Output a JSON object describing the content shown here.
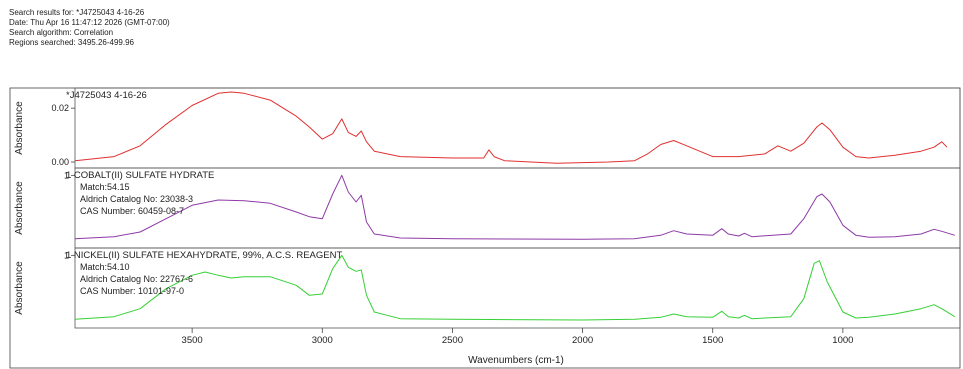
{
  "header": {
    "line1": "Search results for:  *J4725043 4-16-26",
    "line2": "Date:  Thu Apr 16 11:47:12 2026 (GMT-07:00)",
    "line3": "Search algorithm:  Correlation",
    "line4": "Regions searched:  3495.26-499.96"
  },
  "chart_data": {
    "type": "line",
    "xlabel": "Wavenumbers (cm-1)",
    "ylabel": "Absorbance",
    "xlim": [
      3950,
      550
    ],
    "x_reversed": true,
    "x_ticks": [
      "3500",
      "3000",
      "2500",
      "2000",
      "1500",
      "1000"
    ],
    "x_tick_values": [
      3500,
      3000,
      2500,
      2000,
      1500,
      1000
    ],
    "panels": [
      {
        "name": "*J4725043 4-16-26",
        "color": "#e03030",
        "ylim": [
          0,
          0.026
        ],
        "y_ticks": [
          "0.02",
          "0.00"
        ],
        "y_tick_values": [
          0.02,
          0.0
        ],
        "info": [],
        "points": [
          [
            3950,
            0.0005
          ],
          [
            3800,
            0.002
          ],
          [
            3700,
            0.006
          ],
          [
            3600,
            0.014
          ],
          [
            3500,
            0.021
          ],
          [
            3400,
            0.0255
          ],
          [
            3350,
            0.026
          ],
          [
            3300,
            0.0255
          ],
          [
            3200,
            0.023
          ],
          [
            3100,
            0.017
          ],
          [
            3050,
            0.013
          ],
          [
            3000,
            0.0085
          ],
          [
            2960,
            0.0105
          ],
          [
            2925,
            0.016
          ],
          [
            2900,
            0.011
          ],
          [
            2870,
            0.0095
          ],
          [
            2850,
            0.0115
          ],
          [
            2830,
            0.0075
          ],
          [
            2800,
            0.004
          ],
          [
            2700,
            0.002
          ],
          [
            2500,
            0.0015
          ],
          [
            2380,
            0.0015
          ],
          [
            2360,
            0.0045
          ],
          [
            2340,
            0.002
          ],
          [
            2300,
            0.0005
          ],
          [
            2100,
            -0.0005
          ],
          [
            1900,
            0.0
          ],
          [
            1800,
            0.0005
          ],
          [
            1750,
            0.003
          ],
          [
            1700,
            0.0065
          ],
          [
            1650,
            0.008
          ],
          [
            1600,
            0.006
          ],
          [
            1500,
            0.002
          ],
          [
            1400,
            0.002
          ],
          [
            1300,
            0.003
          ],
          [
            1250,
            0.006
          ],
          [
            1200,
            0.004
          ],
          [
            1150,
            0.007
          ],
          [
            1100,
            0.013
          ],
          [
            1080,
            0.0145
          ],
          [
            1050,
            0.012
          ],
          [
            1000,
            0.0055
          ],
          [
            950,
            0.002
          ],
          [
            900,
            0.0015
          ],
          [
            800,
            0.0025
          ],
          [
            700,
            0.004
          ],
          [
            650,
            0.0055
          ],
          [
            620,
            0.0075
          ],
          [
            600,
            0.0055
          ]
        ]
      },
      {
        "name": "1  COBALT(II) SULFATE HYDRATE",
        "color": "#8e3aa6",
        "ylim": [
          0,
          1.05
        ],
        "y_ticks": [
          "1"
        ],
        "y_tick_values": [
          1.0
        ],
        "info": [
          "Match:54.15",
          "Aldrich Catalog No:  23038-3",
          "CAS Number:  60459-08-7"
        ],
        "points": [
          [
            3950,
            0.05
          ],
          [
            3800,
            0.08
          ],
          [
            3700,
            0.15
          ],
          [
            3600,
            0.35
          ],
          [
            3500,
            0.55
          ],
          [
            3400,
            0.63
          ],
          [
            3300,
            0.62
          ],
          [
            3200,
            0.58
          ],
          [
            3100,
            0.45
          ],
          [
            3050,
            0.38
          ],
          [
            3000,
            0.35
          ],
          [
            2960,
            0.72
          ],
          [
            2925,
            1.0
          ],
          [
            2900,
            0.75
          ],
          [
            2870,
            0.6
          ],
          [
            2850,
            0.7
          ],
          [
            2830,
            0.3
          ],
          [
            2800,
            0.12
          ],
          [
            2700,
            0.06
          ],
          [
            2500,
            0.05
          ],
          [
            2000,
            0.04
          ],
          [
            1800,
            0.05
          ],
          [
            1700,
            0.1
          ],
          [
            1650,
            0.17
          ],
          [
            1600,
            0.12
          ],
          [
            1500,
            0.1
          ],
          [
            1465,
            0.2
          ],
          [
            1440,
            0.12
          ],
          [
            1400,
            0.09
          ],
          [
            1378,
            0.13
          ],
          [
            1350,
            0.08
          ],
          [
            1200,
            0.12
          ],
          [
            1150,
            0.35
          ],
          [
            1100,
            0.68
          ],
          [
            1080,
            0.72
          ],
          [
            1050,
            0.6
          ],
          [
            1000,
            0.25
          ],
          [
            950,
            0.1
          ],
          [
            900,
            0.07
          ],
          [
            800,
            0.08
          ],
          [
            700,
            0.12
          ],
          [
            650,
            0.19
          ],
          [
            620,
            0.16
          ],
          [
            570,
            0.1
          ]
        ]
      },
      {
        "name": "1  NICKEL(II) SULFATE HEXAHYDRATE, 99%, A.C.S. REAGENT",
        "color": "#36d036",
        "ylim": [
          0,
          1.05
        ],
        "y_ticks": [
          "1"
        ],
        "y_tick_values": [
          1.0
        ],
        "info": [
          "Match:54.10",
          "Aldrich Catalog No:  22767-6",
          "CAS Number:  10101-97-0"
        ],
        "points": [
          [
            3950,
            0.04
          ],
          [
            3800,
            0.08
          ],
          [
            3700,
            0.2
          ],
          [
            3600,
            0.5
          ],
          [
            3500,
            0.7
          ],
          [
            3450,
            0.75
          ],
          [
            3400,
            0.7
          ],
          [
            3350,
            0.66
          ],
          [
            3300,
            0.68
          ],
          [
            3200,
            0.68
          ],
          [
            3100,
            0.55
          ],
          [
            3050,
            0.4
          ],
          [
            3000,
            0.42
          ],
          [
            2960,
            0.8
          ],
          [
            2925,
            1.0
          ],
          [
            2900,
            0.82
          ],
          [
            2870,
            0.76
          ],
          [
            2850,
            0.78
          ],
          [
            2830,
            0.4
          ],
          [
            2800,
            0.15
          ],
          [
            2700,
            0.05
          ],
          [
            2500,
            0.04
          ],
          [
            2000,
            0.03
          ],
          [
            1800,
            0.04
          ],
          [
            1700,
            0.07
          ],
          [
            1650,
            0.12
          ],
          [
            1600,
            0.08
          ],
          [
            1500,
            0.07
          ],
          [
            1465,
            0.16
          ],
          [
            1440,
            0.08
          ],
          [
            1400,
            0.06
          ],
          [
            1378,
            0.1
          ],
          [
            1350,
            0.05
          ],
          [
            1200,
            0.08
          ],
          [
            1150,
            0.35
          ],
          [
            1110,
            0.88
          ],
          [
            1090,
            0.92
          ],
          [
            1060,
            0.6
          ],
          [
            1000,
            0.15
          ],
          [
            950,
            0.06
          ],
          [
            900,
            0.07
          ],
          [
            800,
            0.12
          ],
          [
            700,
            0.2
          ],
          [
            650,
            0.26
          ],
          [
            620,
            0.2
          ],
          [
            570,
            0.08
          ]
        ]
      }
    ]
  }
}
